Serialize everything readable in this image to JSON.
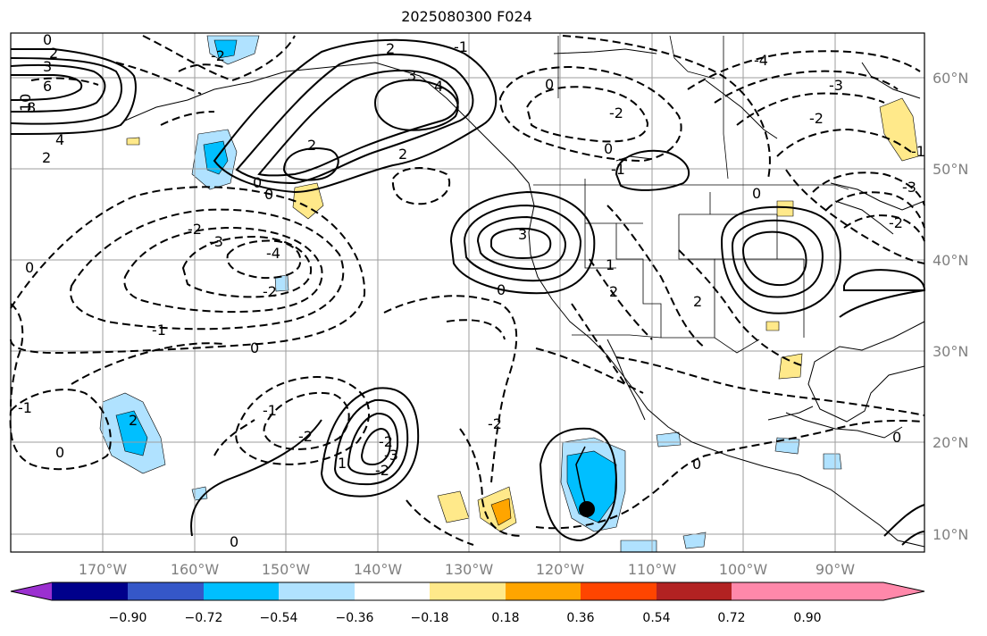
{
  "title": "2025080300 F024",
  "lat_labels": [
    "60°N",
    "50°N",
    "40°N",
    "30°N",
    "20°N",
    "10°N"
  ],
  "lon_labels": [
    "170°W",
    "160°W",
    "150°W",
    "140°W",
    "130°W",
    "120°W",
    "110°W",
    "100°W",
    "90°W"
  ],
  "colorbar": {
    "tick_labels": [
      "−0.90",
      "−0.72",
      "−0.54",
      "−0.36",
      "−0.18",
      "0.18",
      "0.36",
      "0.54",
      "0.72",
      "0.90"
    ],
    "colors": [
      "#9b30d0",
      "#00008b",
      "#3557c8",
      "#00bfff",
      "#b0e2ff",
      "#ffffff",
      "#ffe98a",
      "#ffa500",
      "#ff4500",
      "#b22222",
      "#ff88aa"
    ]
  },
  "contour_labels": [
    "0",
    "2",
    "3",
    "6",
    "10",
    "8",
    "4",
    "2",
    "-2",
    "2",
    "3",
    "4",
    "2",
    "2",
    "0",
    "0",
    "-2",
    "-3",
    "-4",
    "-2",
    "3",
    "0",
    "-1",
    "0",
    "-2",
    "0",
    "1",
    "-1",
    "-2",
    "-2",
    "-3",
    "-2",
    "0",
    "-2",
    "0",
    "-4",
    "-3",
    "-2",
    "0",
    "-1",
    "0",
    "-1",
    "-2",
    "-3",
    "2",
    "1",
    "2",
    "0",
    "0",
    "2",
    "-1",
    "0",
    "-1"
  ],
  "marker": "storm-center"
}
